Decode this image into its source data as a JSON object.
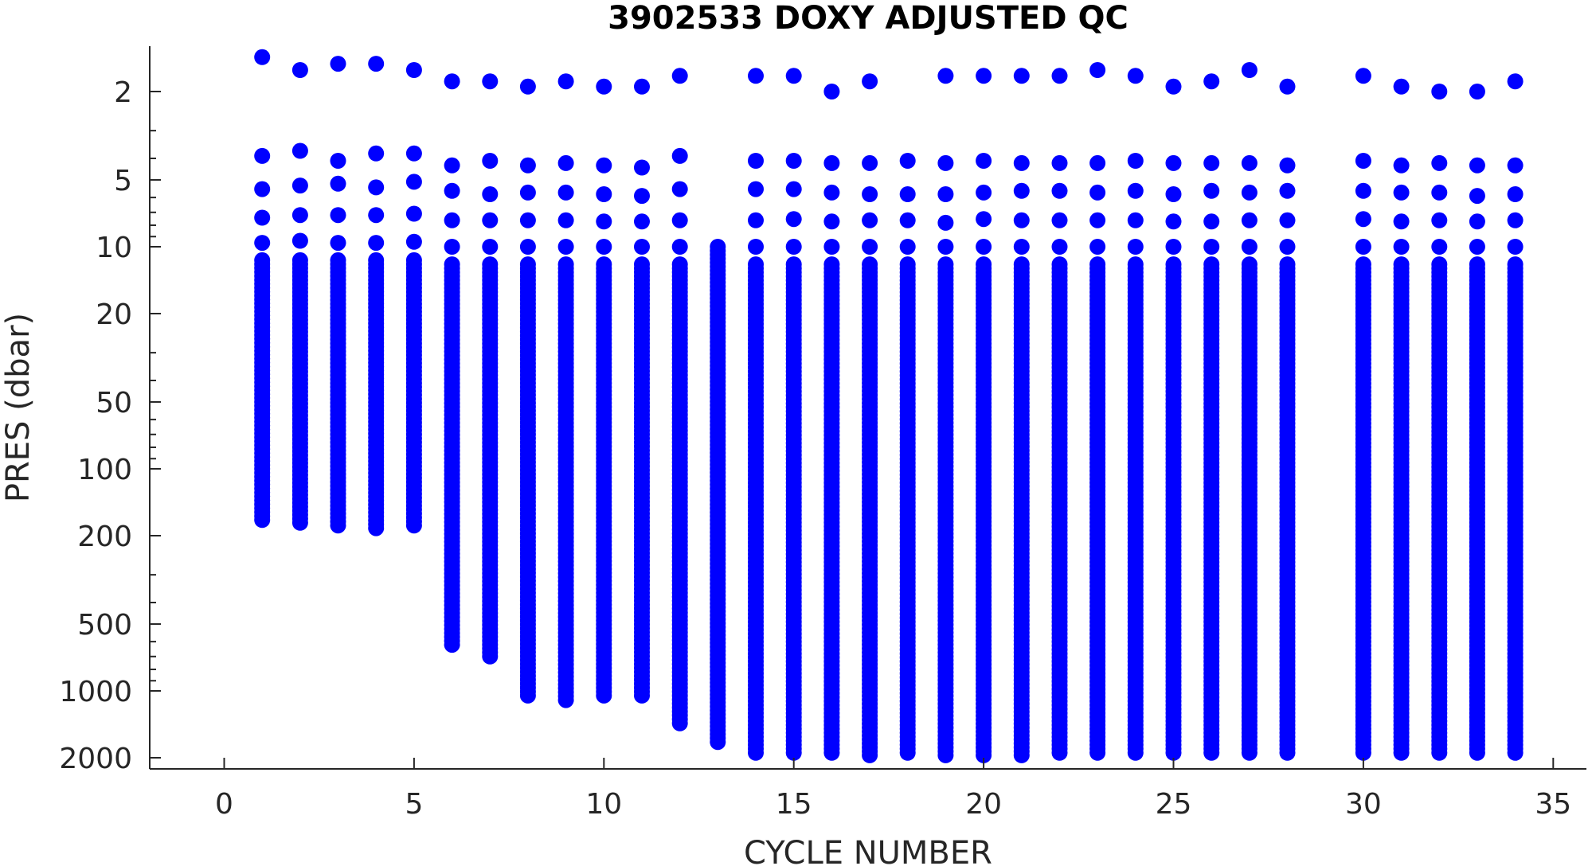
{
  "chart_data": {
    "type": "scatter",
    "title": "3902533  DOXY ADJUSTED QC",
    "xlabel": "CYCLE NUMBER",
    "ylabel": "PRES (dbar)",
    "xlim": [
      -2,
      36
    ],
    "ylim": [
      1.25,
      2200
    ],
    "y_scale": "log",
    "y_reversed": true,
    "x_ticks": [
      0,
      5,
      10,
      15,
      20,
      25,
      30,
      35
    ],
    "y_ticks": [
      2,
      5,
      10,
      20,
      50,
      100,
      200,
      500,
      1000,
      2000
    ],
    "grid": false,
    "marker_color": "#0000ff",
    "series": [
      {
        "values": [
          {
            "cycle": 1,
            "surface": 1.4,
            "pressures": [
              3.9,
              5.5,
              7.4,
              9.6
            ],
            "profile_start": 11.5,
            "max_pres": 170
          },
          {
            "cycle": 2,
            "surface": 1.6,
            "pressures": [
              3.7,
              5.3,
              7.2,
              9.4
            ],
            "profile_start": 11.5,
            "max_pres": 175
          },
          {
            "cycle": 3,
            "surface": 1.5,
            "pressures": [
              4.1,
              5.2,
              7.2,
              9.6
            ],
            "profile_start": 11.5,
            "max_pres": 180
          },
          {
            "cycle": 4,
            "surface": 1.5,
            "pressures": [
              3.8,
              5.4,
              7.2,
              9.6
            ],
            "profile_start": 11.5,
            "max_pres": 185
          },
          {
            "cycle": 5,
            "surface": 1.6,
            "pressures": [
              3.8,
              5.1,
              7.1,
              9.5
            ],
            "profile_start": 11.5,
            "max_pres": 180
          },
          {
            "cycle": 6,
            "surface": 1.8,
            "pressures": [
              4.3,
              5.6,
              7.6,
              10
            ],
            "profile_start": 12,
            "max_pres": 620
          },
          {
            "cycle": 7,
            "surface": 1.8,
            "pressures": [
              4.1,
              5.8,
              7.6,
              10
            ],
            "profile_start": 12,
            "max_pres": 700
          },
          {
            "cycle": 8,
            "surface": 1.9,
            "pressures": [
              4.3,
              5.7,
              7.6,
              10
            ],
            "profile_start": 12,
            "max_pres": 1050
          },
          {
            "cycle": 9,
            "surface": 1.8,
            "pressures": [
              4.2,
              5.7,
              7.6,
              10
            ],
            "profile_start": 12,
            "max_pres": 1100
          },
          {
            "cycle": 10,
            "surface": 1.9,
            "pressures": [
              4.3,
              5.8,
              7.7,
              10
            ],
            "profile_start": 12,
            "max_pres": 1050
          },
          {
            "cycle": 11,
            "surface": 1.9,
            "pressures": [
              4.4,
              5.9,
              7.7,
              10
            ],
            "profile_start": 12,
            "max_pres": 1050
          },
          {
            "cycle": 12,
            "surface": 1.7,
            "pressures": [
              3.9,
              5.5,
              7.6,
              10
            ],
            "profile_start": 12,
            "max_pres": 1400
          },
          {
            "cycle": 13,
            "surface": null,
            "pressures": [],
            "profile_start": 10,
            "max_pres": 1700
          },
          {
            "cycle": 14,
            "surface": 1.7,
            "pressures": [
              4.1,
              5.5,
              7.6,
              10
            ],
            "profile_start": 12,
            "max_pres": 1900
          },
          {
            "cycle": 15,
            "surface": 1.7,
            "pressures": [
              4.1,
              5.5,
              7.5,
              10
            ],
            "profile_start": 12,
            "max_pres": 1900
          },
          {
            "cycle": 16,
            "surface": 2.0,
            "pressures": [
              4.2,
              5.7,
              7.7,
              10
            ],
            "profile_start": 12,
            "max_pres": 1900
          },
          {
            "cycle": 17,
            "surface": 1.8,
            "pressures": [
              4.2,
              5.8,
              7.6,
              10
            ],
            "profile_start": 12,
            "max_pres": 1950
          },
          {
            "cycle": 18,
            "surface": null,
            "pressures": [
              4.1,
              5.8,
              7.6,
              10
            ],
            "profile_start": 12,
            "max_pres": 1900
          },
          {
            "cycle": 19,
            "surface": 1.7,
            "pressures": [
              4.2,
              5.8,
              7.8,
              10
            ],
            "profile_start": 12,
            "max_pres": 1950
          },
          {
            "cycle": 20,
            "surface": 1.7,
            "pressures": [
              4.1,
              5.7,
              7.5,
              10
            ],
            "profile_start": 12,
            "max_pres": 1950
          },
          {
            "cycle": 21,
            "surface": 1.7,
            "pressures": [
              4.2,
              5.6,
              7.6,
              10
            ],
            "profile_start": 12,
            "max_pres": 1950
          },
          {
            "cycle": 22,
            "surface": 1.7,
            "pressures": [
              4.2,
              5.6,
              7.6,
              10
            ],
            "profile_start": 12,
            "max_pres": 1900
          },
          {
            "cycle": 23,
            "surface": 1.6,
            "pressures": [
              4.2,
              5.7,
              7.6,
              10
            ],
            "profile_start": 12,
            "max_pres": 1900
          },
          {
            "cycle": 24,
            "surface": 1.7,
            "pressures": [
              4.1,
              5.6,
              7.6,
              10
            ],
            "profile_start": 12,
            "max_pres": 1900
          },
          {
            "cycle": 25,
            "surface": 1.9,
            "pressures": [
              4.2,
              5.8,
              7.7,
              10
            ],
            "profile_start": 12,
            "max_pres": 1900
          },
          {
            "cycle": 26,
            "surface": 1.8,
            "pressures": [
              4.2,
              5.6,
              7.7,
              10
            ],
            "profile_start": 12,
            "max_pres": 1900
          },
          {
            "cycle": 27,
            "surface": 1.6,
            "pressures": [
              4.2,
              5.7,
              7.6,
              10
            ],
            "profile_start": 12,
            "max_pres": 1900
          },
          {
            "cycle": 28,
            "surface": 1.9,
            "pressures": [
              4.3,
              5.6,
              7.6,
              10
            ],
            "profile_start": 12,
            "max_pres": 1900
          },
          {
            "cycle": 30,
            "surface": 1.7,
            "pressures": [
              4.1,
              5.6,
              7.5,
              10
            ],
            "profile_start": 12,
            "max_pres": 1900
          },
          {
            "cycle": 31,
            "surface": 1.9,
            "pressures": [
              4.3,
              5.7,
              7.7,
              10
            ],
            "profile_start": 12,
            "max_pres": 1900
          },
          {
            "cycle": 32,
            "surface": 2.0,
            "pressures": [
              4.2,
              5.7,
              7.6,
              10
            ],
            "profile_start": 12,
            "max_pres": 1900
          },
          {
            "cycle": 33,
            "surface": 2.0,
            "pressures": [
              4.3,
              5.9,
              7.7,
              10
            ],
            "profile_start": 12,
            "max_pres": 1900
          },
          {
            "cycle": 34,
            "surface": 1.8,
            "pressures": [
              4.3,
              5.8,
              7.6,
              10
            ],
            "profile_start": 12,
            "max_pres": 1900
          }
        ]
      }
    ]
  }
}
